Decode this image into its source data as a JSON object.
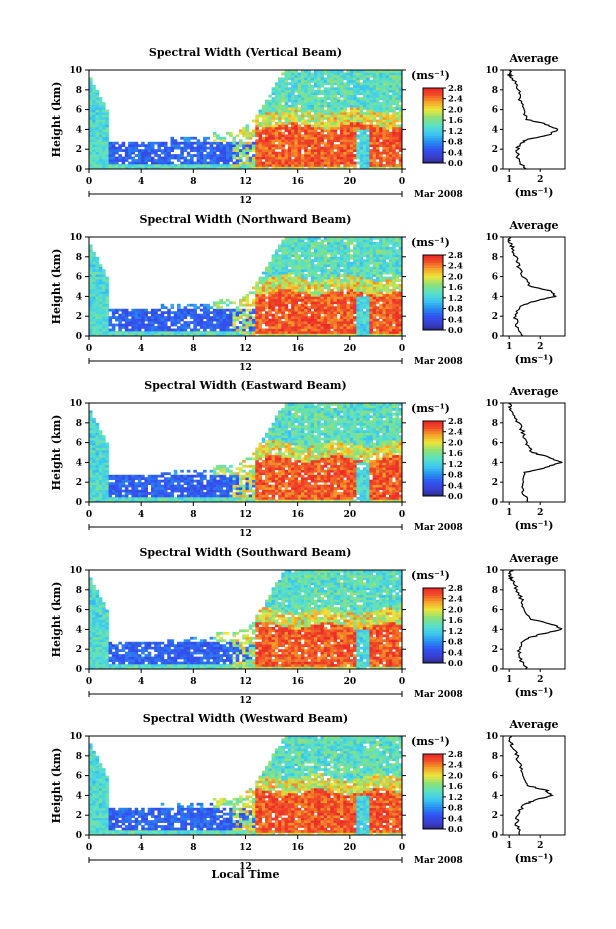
{
  "figure": {
    "date_label": "Mar 2008",
    "xlabel": "Local Time",
    "x_ticks": [
      "0",
      "4",
      "8",
      "12",
      "16",
      "20",
      "0"
    ],
    "day_label": "12",
    "avg_title": "Average",
    "avg_xlabel": "(ms⁻¹)",
    "avg_xticks": [
      "1",
      "2"
    ],
    "units": "(ms⁻¹)",
    "colorbar_ticks": [
      "0.0",
      "0.4",
      "0.8",
      "1.2",
      "1.6",
      "2.0",
      "2.4",
      "2.8"
    ],
    "colors": {
      "low": "#2b2b8c",
      "blue": "#3a4ff0",
      "cyan": "#3fd4f0",
      "green": "#7ee08a",
      "yellow": "#f2e53a",
      "orange": "#f58a2a",
      "red": "#ef2b2b"
    }
  },
  "chart_data": [
    {
      "type": "heatmap",
      "title": "Spectral Width (Vertical Beam)",
      "ylabel": "Height (km)",
      "xlim": [
        0,
        24
      ],
      "ylim": [
        0,
        10
      ],
      "y_ticks": [
        "0",
        "2",
        "4",
        "6",
        "8",
        "10"
      ],
      "colorbar_range": [
        0.0,
        2.8
      ],
      "average_profile": {
        "xlim": [
          0.8,
          2.8
        ],
        "height_km": [
          0,
          1,
          2,
          2.5,
          3,
          3.5,
          4,
          4.5,
          5,
          6,
          7,
          8,
          9,
          9.5,
          10
        ],
        "width": [
          1.5,
          1.3,
          1.25,
          1.35,
          1.6,
          2.3,
          2.6,
          2.2,
          1.6,
          1.45,
          1.35,
          1.3,
          1.15,
          1.0,
          1.05
        ]
      }
    },
    {
      "type": "heatmap",
      "title": "Spectral Width (Northward Beam)",
      "ylabel": "Height (km)",
      "xlim": [
        0,
        24
      ],
      "ylim": [
        0,
        10
      ],
      "y_ticks": [
        "0",
        "2",
        "4",
        "6",
        "8",
        "10"
      ],
      "colorbar_range": [
        0.0,
        2.8
      ],
      "average_profile": {
        "xlim": [
          0.8,
          2.8
        ],
        "height_km": [
          0,
          1,
          2,
          3,
          3.5,
          4,
          4.5,
          5,
          6,
          7,
          8,
          9,
          9.5,
          10
        ],
        "width": [
          1.45,
          1.25,
          1.2,
          1.35,
          1.8,
          2.5,
          2.4,
          1.7,
          1.45,
          1.3,
          1.2,
          1.1,
          1.0,
          1.05
        ]
      }
    },
    {
      "type": "heatmap",
      "title": "Spectral Width (Eastward Beam)",
      "ylabel": "Height (km)",
      "xlim": [
        0,
        24
      ],
      "ylim": [
        0,
        10
      ],
      "y_ticks": [
        "0",
        "2",
        "4",
        "6",
        "8",
        "10"
      ],
      "colorbar_range": [
        0.0,
        2.8
      ],
      "average_profile": {
        "xlim": [
          0.8,
          2.8
        ],
        "height_km": [
          0,
          1,
          2,
          3,
          3.5,
          4,
          4.5,
          5,
          6,
          7,
          8,
          9,
          9.5,
          10
        ],
        "width": [
          1.6,
          1.45,
          1.4,
          1.5,
          2.2,
          2.7,
          2.3,
          1.75,
          1.55,
          1.45,
          1.3,
          1.15,
          1.0,
          1.05
        ]
      }
    },
    {
      "type": "heatmap",
      "title": "Spectral Width (Southward Beam)",
      "ylabel": "Height (km)",
      "xlim": [
        0,
        24
      ],
      "ylim": [
        0,
        10
      ],
      "y_ticks": [
        "0",
        "2",
        "4",
        "6",
        "8",
        "10"
      ],
      "colorbar_range": [
        0.0,
        2.8
      ],
      "average_profile": {
        "xlim": [
          0.8,
          2.8
        ],
        "height_km": [
          0,
          1,
          2,
          3,
          3.5,
          4,
          4.5,
          5,
          6,
          7,
          8,
          9,
          9.5,
          10
        ],
        "width": [
          1.55,
          1.35,
          1.3,
          1.5,
          2.0,
          2.7,
          2.4,
          1.7,
          1.5,
          1.4,
          1.25,
          1.1,
          1.0,
          1.05
        ]
      }
    },
    {
      "type": "heatmap",
      "title": "Spectral Width (Westward Beam)",
      "ylabel": "Height (km)",
      "xlim": [
        0,
        24
      ],
      "ylim": [
        0,
        10
      ],
      "y_ticks": [
        "0",
        "2",
        "4",
        "6",
        "8",
        "10"
      ],
      "colorbar_range": [
        0.0,
        2.8
      ],
      "average_profile": {
        "xlim": [
          0.8,
          2.8
        ],
        "height_km": [
          0,
          1,
          2,
          3,
          3.5,
          4,
          4.5,
          5,
          6,
          7,
          8,
          9,
          9.5,
          10
        ],
        "width": [
          1.4,
          1.25,
          1.25,
          1.45,
          1.8,
          2.4,
          2.2,
          1.6,
          1.45,
          1.35,
          1.25,
          1.1,
          1.0,
          1.05
        ]
      }
    }
  ]
}
